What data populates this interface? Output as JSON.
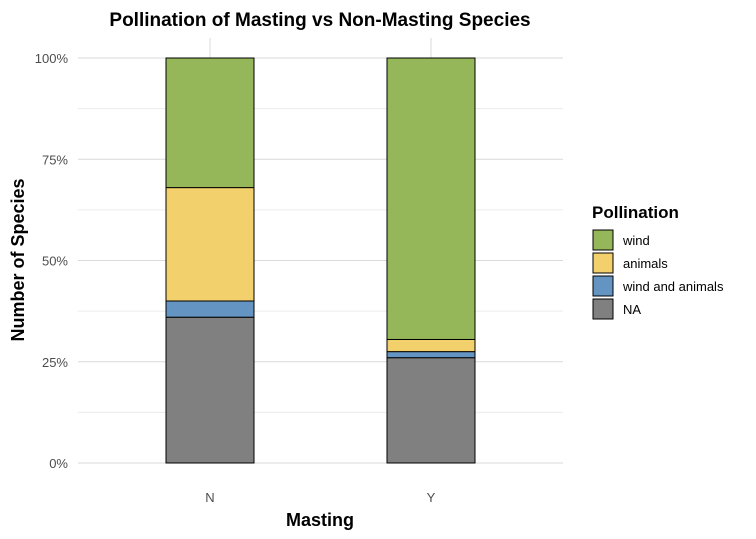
{
  "chart_data": {
    "type": "bar",
    "stacked": true,
    "normalized": true,
    "title": "Pollination of Masting vs Non-Masting Species",
    "xlabel": "Masting",
    "ylabel": "Number of Species",
    "categories": [
      "N",
      "Y"
    ],
    "ylim": [
      0,
      1
    ],
    "yticks": [
      {
        "value": 0,
        "label": "0%"
      },
      {
        "value": 0.25,
        "label": "25%"
      },
      {
        "value": 0.5,
        "label": "50%"
      },
      {
        "value": 0.75,
        "label": "75%"
      },
      {
        "value": 1,
        "label": "100%"
      }
    ],
    "grid": true,
    "legend": {
      "title": "Pollination",
      "position": "right"
    },
    "series": [
      {
        "name": "NA",
        "color": "#808080",
        "values": [
          0.36,
          0.26
        ]
      },
      {
        "name": "wind and animals",
        "color": "#6495c2",
        "values": [
          0.04,
          0.015
        ]
      },
      {
        "name": "animals",
        "color": "#f2d06b",
        "values": [
          0.28,
          0.03
        ]
      },
      {
        "name": "wind",
        "color": "#95b75a",
        "values": [
          0.32,
          0.695
        ]
      }
    ],
    "legend_order": [
      "wind",
      "animals",
      "wind and animals",
      "NA"
    ]
  }
}
